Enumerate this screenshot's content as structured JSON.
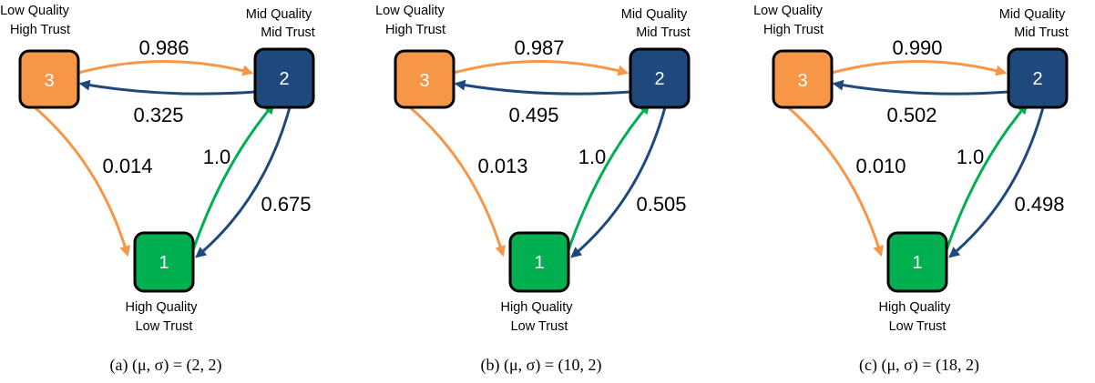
{
  "colors": {
    "state3": "#F79646",
    "state2": "#1F497D",
    "state1": "#00B050",
    "border": "#000000"
  },
  "states": {
    "s3": {
      "id": "3",
      "line1": "Low Quality",
      "line2": "High Trust"
    },
    "s2": {
      "id": "2",
      "line1": "Mid Quality",
      "line2": "Mid Trust"
    },
    "s1": {
      "id": "1",
      "line1": "High Quality",
      "line2": "Low Trust"
    }
  },
  "panels": [
    {
      "caption": "(a)  (μ, σ) = (2, 2)",
      "p32": "0.986",
      "p23": "0.325",
      "p31": "0.014",
      "p12": "1.0",
      "p21": "0.675"
    },
    {
      "caption": "(b)  (μ, σ) = (10, 2)",
      "p32": "0.987",
      "p23": "0.495",
      "p31": "0.013",
      "p12": "1.0",
      "p21": "0.505"
    },
    {
      "caption": "(c)  (μ, σ) = (18, 2)",
      "p32": "0.990",
      "p23": "0.502",
      "p31": "0.010",
      "p12": "1.0",
      "p21": "0.498"
    }
  ]
}
